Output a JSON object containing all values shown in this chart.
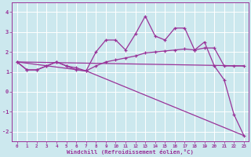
{
  "xlabel": "Windchill (Refroidissement éolien,°C)",
  "bg_color": "#cce8ee",
  "line_color": "#993399",
  "grid_color": "#ffffff",
  "xlim": [
    -0.5,
    23.5
  ],
  "ylim": [
    -2.5,
    4.5
  ],
  "xticks": [
    0,
    1,
    2,
    3,
    4,
    5,
    6,
    7,
    8,
    9,
    10,
    11,
    12,
    13,
    14,
    15,
    16,
    17,
    18,
    19,
    20,
    21,
    22,
    23
  ],
  "yticks": [
    -2,
    -1,
    0,
    1,
    2,
    3,
    4
  ],
  "line1_x": [
    0,
    1,
    2,
    3,
    4,
    5,
    6,
    7,
    8,
    9,
    10,
    11,
    12,
    13,
    14,
    15,
    16,
    17,
    18,
    19,
    20,
    21,
    22,
    23
  ],
  "line1_y": [
    1.5,
    1.1,
    1.1,
    1.3,
    1.5,
    1.3,
    1.2,
    1.05,
    2.0,
    2.6,
    2.6,
    2.1,
    2.9,
    3.8,
    2.8,
    2.6,
    3.2,
    3.2,
    2.1,
    2.5,
    1.3,
    0.6,
    -1.15,
    -2.2
  ],
  "line2_x": [
    0,
    1,
    2,
    3,
    4,
    5,
    6,
    7,
    8,
    9,
    10,
    11,
    12,
    13,
    14,
    15,
    16,
    17,
    18,
    19,
    20,
    21,
    22,
    23
  ],
  "line2_y": [
    1.5,
    1.1,
    1.1,
    1.3,
    1.5,
    1.3,
    1.1,
    1.05,
    1.3,
    1.5,
    1.6,
    1.7,
    1.8,
    1.95,
    2.0,
    2.05,
    2.1,
    2.15,
    2.1,
    2.2,
    2.2,
    1.3,
    1.3,
    1.3
  ],
  "line3_x": [
    0,
    23
  ],
  "line3_y": [
    1.5,
    1.3
  ],
  "line4_x": [
    0,
    7,
    23
  ],
  "line4_y": [
    1.5,
    1.05,
    -2.2
  ]
}
